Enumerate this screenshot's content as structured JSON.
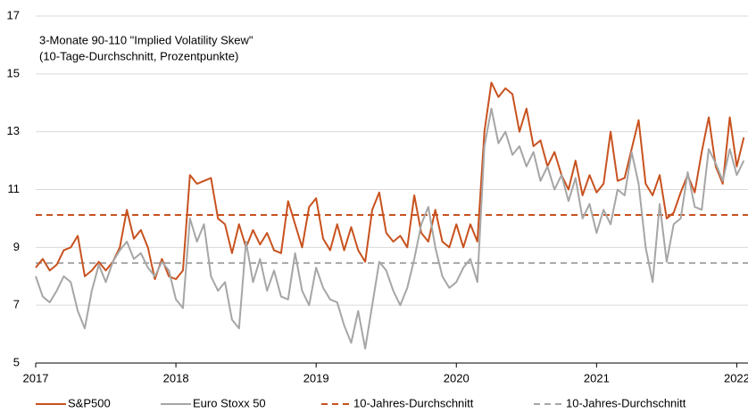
{
  "chart_data": {
    "type": "line",
    "title": "3-Monate 90-110 \"Implied Volatility Skew\"",
    "subtitle": "(10-Tage-Durchschnitt, Prozentpunkte)",
    "x": [
      2017.0,
      2017.05,
      2017.1,
      2017.15,
      2017.2,
      2017.25,
      2017.3,
      2017.35,
      2017.4,
      2017.45,
      2017.5,
      2017.55,
      2017.6,
      2017.65,
      2017.7,
      2017.75,
      2017.8,
      2017.85,
      2017.9,
      2017.95,
      2018.0,
      2018.05,
      2018.1,
      2018.15,
      2018.2,
      2018.25,
      2018.3,
      2018.35,
      2018.4,
      2018.45,
      2018.5,
      2018.55,
      2018.6,
      2018.65,
      2018.7,
      2018.75,
      2018.8,
      2018.85,
      2018.9,
      2018.95,
      2019.0,
      2019.05,
      2019.1,
      2019.15,
      2019.2,
      2019.25,
      2019.3,
      2019.35,
      2019.4,
      2019.45,
      2019.5,
      2019.55,
      2019.6,
      2019.65,
      2019.7,
      2019.75,
      2019.8,
      2019.85,
      2019.9,
      2019.95,
      2020.0,
      2020.05,
      2020.1,
      2020.15,
      2020.2,
      2020.25,
      2020.3,
      2020.35,
      2020.4,
      2020.45,
      2020.5,
      2020.55,
      2020.6,
      2020.65,
      2020.7,
      2020.75,
      2020.8,
      2020.85,
      2020.9,
      2020.95,
      2021.0,
      2021.05,
      2021.1,
      2021.15,
      2021.2,
      2021.25,
      2021.3,
      2021.35,
      2021.4,
      2021.45,
      2021.5,
      2021.55,
      2021.6,
      2021.65,
      2021.7,
      2021.75,
      2021.8,
      2021.85,
      2021.9,
      2021.95,
      2022.0,
      2022.05
    ],
    "series": [
      {
        "name": "S&P500",
        "color": "#c8521f",
        "values": [
          8.3,
          8.6,
          8.2,
          8.4,
          8.9,
          9.0,
          9.4,
          8.0,
          8.2,
          8.5,
          8.2,
          8.5,
          9.0,
          10.3,
          9.3,
          9.6,
          9.0,
          7.9,
          8.6,
          8.0,
          7.9,
          8.2,
          11.5,
          11.2,
          11.3,
          11.4,
          10.0,
          9.8,
          8.8,
          9.8,
          9.0,
          9.6,
          9.1,
          9.5,
          8.9,
          8.8,
          10.6,
          9.8,
          9.0,
          10.4,
          10.7,
          9.3,
          8.9,
          9.8,
          8.9,
          9.7,
          8.9,
          8.5,
          10.3,
          10.9,
          9.5,
          9.2,
          9.4,
          9.0,
          10.8,
          9.5,
          9.2,
          10.3,
          9.2,
          9.0,
          9.8,
          9.0,
          9.8,
          9.2,
          13.0,
          14.7,
          14.2,
          14.5,
          14.3,
          13.0,
          13.8,
          12.5,
          12.7,
          11.8,
          12.3,
          11.5,
          11.0,
          12.0,
          10.8,
          11.5,
          10.9,
          11.2,
          13.0,
          11.3,
          11.4,
          12.4,
          13.4,
          11.2,
          10.8,
          11.5,
          10.0,
          10.2,
          10.9,
          11.5,
          10.9,
          12.3,
          13.5,
          11.8,
          11.2,
          13.5,
          11.8,
          12.8
        ]
      },
      {
        "name": "Euro Stoxx 50",
        "color": "#a6a6a6",
        "values": [
          8.0,
          7.3,
          7.1,
          7.5,
          8.0,
          7.8,
          6.8,
          6.2,
          7.5,
          8.4,
          7.8,
          8.5,
          8.9,
          9.2,
          8.6,
          8.8,
          8.3,
          8.0,
          8.5,
          8.2,
          7.2,
          6.9,
          10.0,
          9.2,
          9.8,
          8.0,
          7.5,
          7.8,
          6.5,
          6.2,
          9.2,
          7.8,
          8.6,
          7.5,
          8.2,
          7.3,
          7.2,
          8.8,
          7.5,
          7.0,
          8.3,
          7.6,
          7.2,
          7.1,
          6.3,
          5.7,
          6.8,
          5.5,
          7.0,
          8.5,
          8.2,
          7.5,
          7.0,
          7.6,
          8.6,
          9.8,
          10.4,
          9.0,
          8.0,
          7.6,
          7.8,
          8.3,
          8.6,
          7.8,
          12.5,
          13.8,
          12.6,
          13.0,
          12.2,
          12.5,
          11.8,
          12.3,
          11.3,
          11.8,
          11.0,
          11.5,
          10.6,
          11.4,
          10.0,
          10.5,
          9.5,
          10.3,
          9.8,
          11.0,
          10.8,
          12.3,
          11.2,
          9.0,
          7.8,
          10.5,
          8.5,
          9.8,
          10.0,
          11.6,
          10.4,
          10.3,
          12.4,
          11.9,
          11.3,
          12.4,
          11.5,
          12.0
        ]
      }
    ],
    "reference_lines": [
      {
        "name": "10-Jahres-Durchschnitt",
        "value": 10.12,
        "color": "#c8521f"
      },
      {
        "name": "10-Jahres-Durchschnitt",
        "value": 8.46,
        "color": "#a6a6a6"
      }
    ],
    "xlim": [
      2017,
      2022.08
    ],
    "xticks": [
      2017,
      2018,
      2019,
      2020,
      2021,
      2022
    ],
    "ylim": [
      5,
      17
    ],
    "yticks": [
      5,
      7,
      9,
      11,
      13,
      15,
      17
    ],
    "grid": true
  }
}
